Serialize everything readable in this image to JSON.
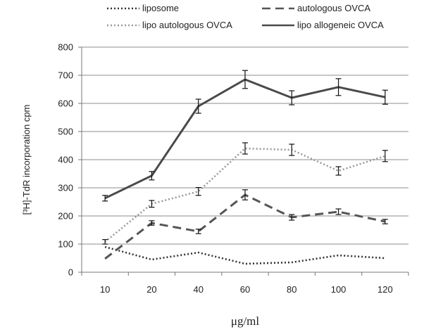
{
  "chart_data": {
    "type": "line",
    "categories": [
      "10",
      "20",
      "40",
      "60",
      "80",
      "100",
      "120"
    ],
    "xlabel": "μg/ml",
    "ylabel": "[³H]-TdR incorporation cpm",
    "ylim": [
      0,
      800
    ],
    "yticks": [
      "0",
      "100",
      "200",
      "300",
      "400",
      "500",
      "600",
      "700",
      "800"
    ],
    "grid": "horizontal",
    "legend_position": "top",
    "series": [
      {
        "name": "liposome",
        "style": "dotted",
        "color": "#333333",
        "values": [
          90,
          45,
          70,
          30,
          35,
          60,
          50
        ],
        "errors": [
          0,
          0,
          0,
          0,
          0,
          0,
          0
        ]
      },
      {
        "name": "autologous OVCA",
        "style": "dashed",
        "color": "#555555",
        "values": [
          48,
          175,
          145,
          275,
          195,
          215,
          180
        ],
        "errors": [
          0,
          8,
          8,
          18,
          10,
          10,
          8
        ]
      },
      {
        "name": "lipo autologous OVCA",
        "style": "dotted",
        "color": "#9a9a9a",
        "values": [
          108,
          243,
          287,
          440,
          435,
          360,
          413
        ],
        "errors": [
          8,
          12,
          14,
          20,
          20,
          15,
          20
        ]
      },
      {
        "name": "lipo allogeneic OVCA",
        "style": "solid",
        "color": "#4a4a4a",
        "values": [
          263,
          343,
          590,
          685,
          620,
          658,
          622
        ],
        "errors": [
          10,
          15,
          25,
          32,
          25,
          30,
          25
        ]
      }
    ]
  }
}
